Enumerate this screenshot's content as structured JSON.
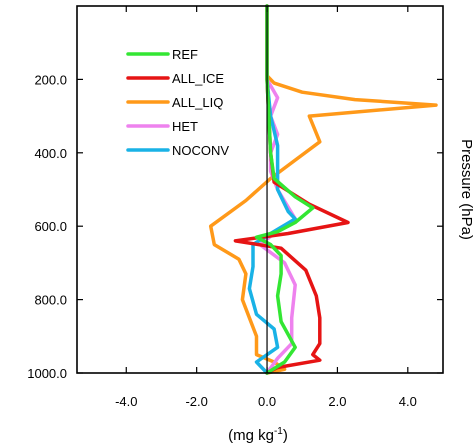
{
  "chart_data": {
    "type": "line",
    "title": "",
    "xlabel": "(mg kg",
    "xlabel_sup": "-1",
    "xlabel_tail": ")",
    "ylabel": "Pressure (hPa)",
    "xlim": [
      -5.4,
      5.0
    ],
    "ylim": [
      1000,
      0
    ],
    "y_inverted": true,
    "grid": false,
    "legend_position": "top-left (inside)",
    "zero_line": 0,
    "x_ticks": [
      -4.0,
      -2.0,
      0.0,
      2.0,
      4.0
    ],
    "x_tick_labels": [
      "-4.0",
      "-2.0",
      "0.0",
      "2.0",
      "4.0"
    ],
    "y_ticks": [
      200,
      400,
      600,
      800,
      1000
    ],
    "y_tick_labels": [
      "200.0",
      "400.0",
      "600.0",
      "800.0",
      "1000.0"
    ],
    "series": [
      {
        "name": "REF",
        "color": "#33e633",
        "points": [
          [
            0,
            0
          ],
          [
            0,
            100
          ],
          [
            0,
            200
          ],
          [
            0.05,
            300
          ],
          [
            0.1,
            400
          ],
          [
            0.2,
            470
          ],
          [
            0.8,
            520
          ],
          [
            1.3,
            550
          ],
          [
            0.8,
            590
          ],
          [
            0.3,
            615
          ],
          [
            -0.3,
            630
          ],
          [
            0.1,
            650
          ],
          [
            0.4,
            680
          ],
          [
            0.4,
            730
          ],
          [
            0.3,
            790
          ],
          [
            0.4,
            860
          ],
          [
            0.8,
            930
          ],
          [
            0.5,
            970
          ],
          [
            0,
            1000
          ]
        ]
      },
      {
        "name": "ALL_ICE",
        "color": "#e61414",
        "points": [
          [
            0,
            0
          ],
          [
            0,
            100
          ],
          [
            0,
            200
          ],
          [
            0.05,
            300
          ],
          [
            0.1,
            400
          ],
          [
            0.2,
            480
          ],
          [
            1.2,
            540
          ],
          [
            2.3,
            590
          ],
          [
            0.6,
            620
          ],
          [
            -0.9,
            640
          ],
          [
            0.4,
            660
          ],
          [
            1.1,
            720
          ],
          [
            1.4,
            790
          ],
          [
            1.5,
            850
          ],
          [
            1.5,
            920
          ],
          [
            1.3,
            950
          ],
          [
            1.5,
            965
          ],
          [
            0.3,
            985
          ],
          [
            0,
            1000
          ]
        ]
      },
      {
        "name": "ALL_LIQ",
        "color": "#ff9919",
        "points": [
          [
            0,
            0
          ],
          [
            0,
            190
          ],
          [
            0.2,
            210
          ],
          [
            1.0,
            235
          ],
          [
            2.5,
            255
          ],
          [
            4.8,
            270
          ],
          [
            1.2,
            300
          ],
          [
            1.5,
            370
          ],
          [
            0.8,
            420
          ],
          [
            0.1,
            470
          ],
          [
            -0.6,
            530
          ],
          [
            -1.6,
            600
          ],
          [
            -1.5,
            650
          ],
          [
            -0.8,
            690
          ],
          [
            -0.6,
            730
          ],
          [
            -0.7,
            800
          ],
          [
            -0.5,
            850
          ],
          [
            -0.3,
            900
          ],
          [
            -0.3,
            950
          ],
          [
            0.2,
            970
          ],
          [
            0.5,
            990
          ],
          [
            0,
            1000
          ]
        ]
      },
      {
        "name": "HET",
        "color": "#ee82ee",
        "points": [
          [
            0,
            0
          ],
          [
            0,
            200
          ],
          [
            0.3,
            250
          ],
          [
            0.1,
            300
          ],
          [
            0.3,
            350
          ],
          [
            0.1,
            400
          ],
          [
            0.1,
            450
          ],
          [
            0.3,
            500
          ],
          [
            0.8,
            580
          ],
          [
            0.2,
            620
          ],
          [
            -0.2,
            650
          ],
          [
            0.5,
            700
          ],
          [
            0.8,
            760
          ],
          [
            0.7,
            850
          ],
          [
            0.7,
            920
          ],
          [
            0.3,
            960
          ],
          [
            0,
            1000
          ]
        ]
      },
      {
        "name": "NOCONV",
        "color": "#19b2e6",
        "points": [
          [
            0,
            0
          ],
          [
            0,
            200
          ],
          [
            0.1,
            300
          ],
          [
            0.3,
            380
          ],
          [
            0.3,
            450
          ],
          [
            0.3,
            500
          ],
          [
            0.6,
            560
          ],
          [
            0.8,
            580
          ],
          [
            0.1,
            620
          ],
          [
            -0.4,
            650
          ],
          [
            -0.4,
            710
          ],
          [
            -0.5,
            770
          ],
          [
            -0.3,
            840
          ],
          [
            0.2,
            880
          ],
          [
            0.3,
            930
          ],
          [
            -0.3,
            970
          ],
          [
            0,
            1000
          ]
        ]
      }
    ]
  }
}
